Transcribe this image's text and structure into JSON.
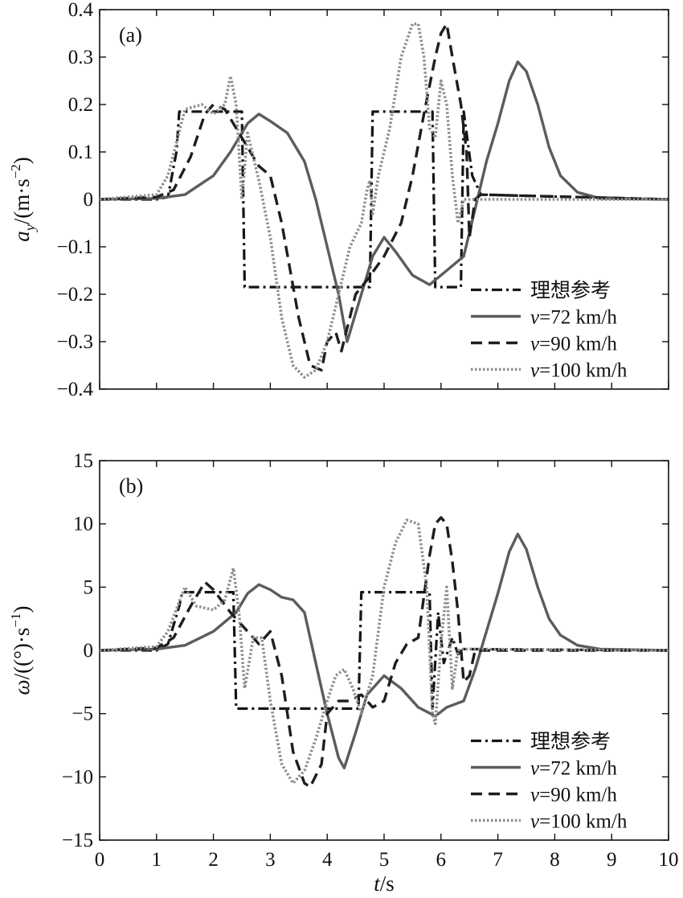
{
  "chart_data": [
    {
      "type": "line",
      "panel": "(a)",
      "ylabel": "a_y/(m·s^-2)",
      "ylabel_parts": {
        "sym": "a",
        "sub": "y",
        "unit": "/(m·s",
        "sup": "−2",
        "close": ")"
      },
      "xlabel": "",
      "xlim": [
        0,
        10
      ],
      "ylim": [
        -0.4,
        0.4
      ],
      "yticks": [
        -0.4,
        -0.3,
        -0.2,
        -0.1,
        0,
        0.1,
        0.2,
        0.3,
        0.4
      ],
      "ytick_labels": [
        "−0.4",
        "−0.3",
        "−0.2",
        "−0.1",
        "0",
        "0.1",
        "0.2",
        "0.3",
        "0.4"
      ],
      "legend_position": "lower-right",
      "series": [
        {
          "name": "理想参考",
          "style": "dashdot",
          "x": [
            0,
            1.0,
            1.2,
            1.35,
            1.4,
            2.5,
            2.55,
            4.75,
            4.8,
            5.85,
            5.9,
            6.35,
            6.4,
            6.55,
            6.7,
            10
          ],
          "y": [
            0,
            0,
            0.005,
            0.1,
            0.185,
            0.185,
            -0.185,
            -0.185,
            0.185,
            0.185,
            -0.185,
            -0.185,
            0.185,
            0.05,
            0.01,
            0
          ]
        },
        {
          "name": "v=72 km/h",
          "style": "solid",
          "x": [
            0,
            1.0,
            1.5,
            2.0,
            2.3,
            2.6,
            2.8,
            3.0,
            3.3,
            3.6,
            3.8,
            4.0,
            4.2,
            4.35,
            4.6,
            4.8,
            5.0,
            5.2,
            5.5,
            5.8,
            6.1,
            6.4,
            6.6,
            6.8,
            7.0,
            7.2,
            7.35,
            7.5,
            7.7,
            7.9,
            8.1,
            8.4,
            8.8,
            10
          ],
          "y": [
            0,
            0.002,
            0.01,
            0.05,
            0.1,
            0.16,
            0.18,
            0.165,
            0.14,
            0.08,
            0.0,
            -0.1,
            -0.2,
            -0.3,
            -0.2,
            -0.12,
            -0.08,
            -0.11,
            -0.16,
            -0.18,
            -0.15,
            -0.12,
            -0.02,
            0.08,
            0.16,
            0.25,
            0.29,
            0.27,
            0.2,
            0.11,
            0.05,
            0.015,
            0.002,
            0
          ]
        },
        {
          "name": "v=90 km/h",
          "style": "dashed",
          "x": [
            0,
            1.0,
            1.3,
            1.6,
            1.85,
            2.0,
            2.2,
            2.5,
            2.8,
            3.0,
            3.2,
            3.5,
            3.7,
            3.9,
            4.0,
            4.15,
            4.25,
            4.5,
            4.7,
            5.0,
            5.3,
            5.5,
            5.7,
            5.9,
            6.0,
            6.1,
            6.2,
            6.35,
            6.45,
            6.5,
            6.6,
            6.7,
            10
          ],
          "y": [
            0,
            0.005,
            0.02,
            0.09,
            0.18,
            0.2,
            0.19,
            0.13,
            0.07,
            0.05,
            -0.05,
            -0.25,
            -0.35,
            -0.36,
            -0.3,
            -0.28,
            -0.32,
            -0.2,
            -0.17,
            -0.12,
            -0.05,
            0.05,
            0.18,
            0.3,
            0.35,
            0.37,
            0.3,
            0.2,
            0.1,
            -0.08,
            0.0,
            0.01,
            0
          ]
        },
        {
          "name": "v=100 km/h",
          "style": "dotted",
          "x": [
            0,
            1.0,
            1.2,
            1.5,
            1.8,
            2.0,
            2.2,
            2.3,
            2.4,
            2.5,
            2.6,
            2.8,
            3.0,
            3.2,
            3.4,
            3.6,
            3.8,
            4.0,
            4.2,
            4.4,
            4.6,
            4.7,
            4.75,
            4.8,
            4.9,
            5.1,
            5.3,
            5.5,
            5.6,
            5.7,
            5.8,
            5.9,
            6.0,
            6.1,
            6.2,
            6.3,
            6.4,
            10
          ],
          "y": [
            0,
            0.01,
            0.05,
            0.19,
            0.2,
            0.18,
            0.2,
            0.26,
            0.2,
            0.0,
            0.14,
            0.04,
            -0.08,
            -0.25,
            -0.35,
            -0.375,
            -0.36,
            -0.3,
            -0.2,
            -0.1,
            -0.05,
            0.02,
            0.04,
            -0.03,
            0.05,
            0.15,
            0.3,
            0.37,
            0.37,
            0.3,
            0.15,
            0.13,
            0.25,
            0.2,
            0.05,
            -0.05,
            0.0,
            0
          ]
        }
      ]
    },
    {
      "type": "line",
      "panel": "(b)",
      "ylabel": "ω/((°)·s^-1)",
      "ylabel_parts": {
        "sym": "ω",
        "unit": "/((°)·s",
        "sup": "−1",
        "close": ")"
      },
      "xlabel": "t/s",
      "xlabel_parts": {
        "sym": "t",
        "unit": "/s"
      },
      "xlim": [
        0,
        10
      ],
      "ylim": [
        -15,
        15
      ],
      "xticks": [
        0,
        1,
        2,
        3,
        4,
        5,
        6,
        7,
        8,
        9,
        10
      ],
      "yticks": [
        -15,
        -10,
        -5,
        0,
        5,
        10,
        15
      ],
      "ytick_labels": [
        "−15",
        "−10",
        "−5",
        "0",
        "5",
        "10",
        "15"
      ],
      "legend_position": "lower-right",
      "series": [
        {
          "name": "理想参考",
          "style": "dashdot",
          "x": [
            0,
            1.0,
            1.2,
            1.4,
            1.45,
            2.35,
            2.4,
            4.55,
            4.6,
            5.8,
            5.85,
            5.95,
            6.05,
            6.2,
            6.3,
            6.4,
            10
          ],
          "y": [
            0,
            0,
            0.5,
            3.5,
            4.6,
            4.6,
            -4.6,
            -4.6,
            4.6,
            4.6,
            -4.6,
            3.0,
            -1.0,
            1.0,
            -0.3,
            0.1,
            0
          ]
        },
        {
          "name": "v=72 km/h",
          "style": "solid",
          "x": [
            0,
            1.0,
            1.5,
            2.0,
            2.4,
            2.6,
            2.8,
            3.0,
            3.2,
            3.4,
            3.6,
            3.8,
            4.0,
            4.2,
            4.3,
            4.5,
            4.7,
            5.0,
            5.3,
            5.6,
            5.9,
            6.1,
            6.4,
            6.6,
            6.8,
            7.0,
            7.2,
            7.35,
            7.5,
            7.7,
            7.9,
            8.1,
            8.4,
            8.8,
            10
          ],
          "y": [
            0,
            0.1,
            0.4,
            1.5,
            3.0,
            4.5,
            5.2,
            4.8,
            4.2,
            4.0,
            3.0,
            -1.0,
            -5.0,
            -8.5,
            -9.3,
            -6.5,
            -3.5,
            -2.0,
            -3.0,
            -4.5,
            -5.2,
            -4.5,
            -4.0,
            -1.5,
            1.5,
            4.5,
            7.8,
            9.2,
            8.0,
            5.0,
            2.5,
            1.2,
            0.4,
            0.1,
            0
          ]
        },
        {
          "name": "v=90 km/h",
          "style": "dashed",
          "x": [
            0,
            1.0,
            1.3,
            1.6,
            1.85,
            2.0,
            2.3,
            2.6,
            2.8,
            3.0,
            3.2,
            3.4,
            3.6,
            3.7,
            3.9,
            4.0,
            4.2,
            4.4,
            4.6,
            4.8,
            5.0,
            5.2,
            5.4,
            5.6,
            5.8,
            5.9,
            6.0,
            6.1,
            6.2,
            6.3,
            6.4,
            6.5,
            6.6,
            10
          ],
          "y": [
            0,
            0.2,
            1.0,
            3.5,
            5.4,
            4.8,
            3.0,
            1.5,
            0.5,
            1.5,
            -2.0,
            -8.0,
            -10.5,
            -10.8,
            -9.0,
            -5.0,
            -4.0,
            -4.0,
            -3.5,
            -4.5,
            -4.0,
            -1.0,
            0.5,
            1.0,
            7.5,
            10.0,
            10.5,
            10.0,
            7.0,
            3.0,
            -2.5,
            -2.0,
            0.0,
            0
          ]
        },
        {
          "name": "v=100 km/h",
          "style": "dotted",
          "x": [
            0,
            1.0,
            1.2,
            1.5,
            1.7,
            2.0,
            2.2,
            2.35,
            2.45,
            2.55,
            2.7,
            2.85,
            3.0,
            3.2,
            3.4,
            3.6,
            3.8,
            4.0,
            4.15,
            4.3,
            4.45,
            4.6,
            4.8,
            5.0,
            5.2,
            5.4,
            5.6,
            5.75,
            5.85,
            5.9,
            6.0,
            6.1,
            6.2,
            6.3,
            6.4,
            10
          ],
          "y": [
            0,
            0.3,
            1.5,
            5.0,
            3.5,
            3.2,
            4.0,
            6.5,
            3.0,
            -3.0,
            1.0,
            1.0,
            -4.0,
            -9.0,
            -10.5,
            -9.5,
            -7.0,
            -4.0,
            -2.0,
            -1.5,
            -3.0,
            -5.0,
            -2.0,
            5.0,
            8.5,
            10.3,
            10.0,
            5.0,
            -5.0,
            -5.8,
            0.5,
            5.0,
            -3.0,
            0.0,
            0.1,
            0
          ]
        }
      ]
    }
  ]
}
